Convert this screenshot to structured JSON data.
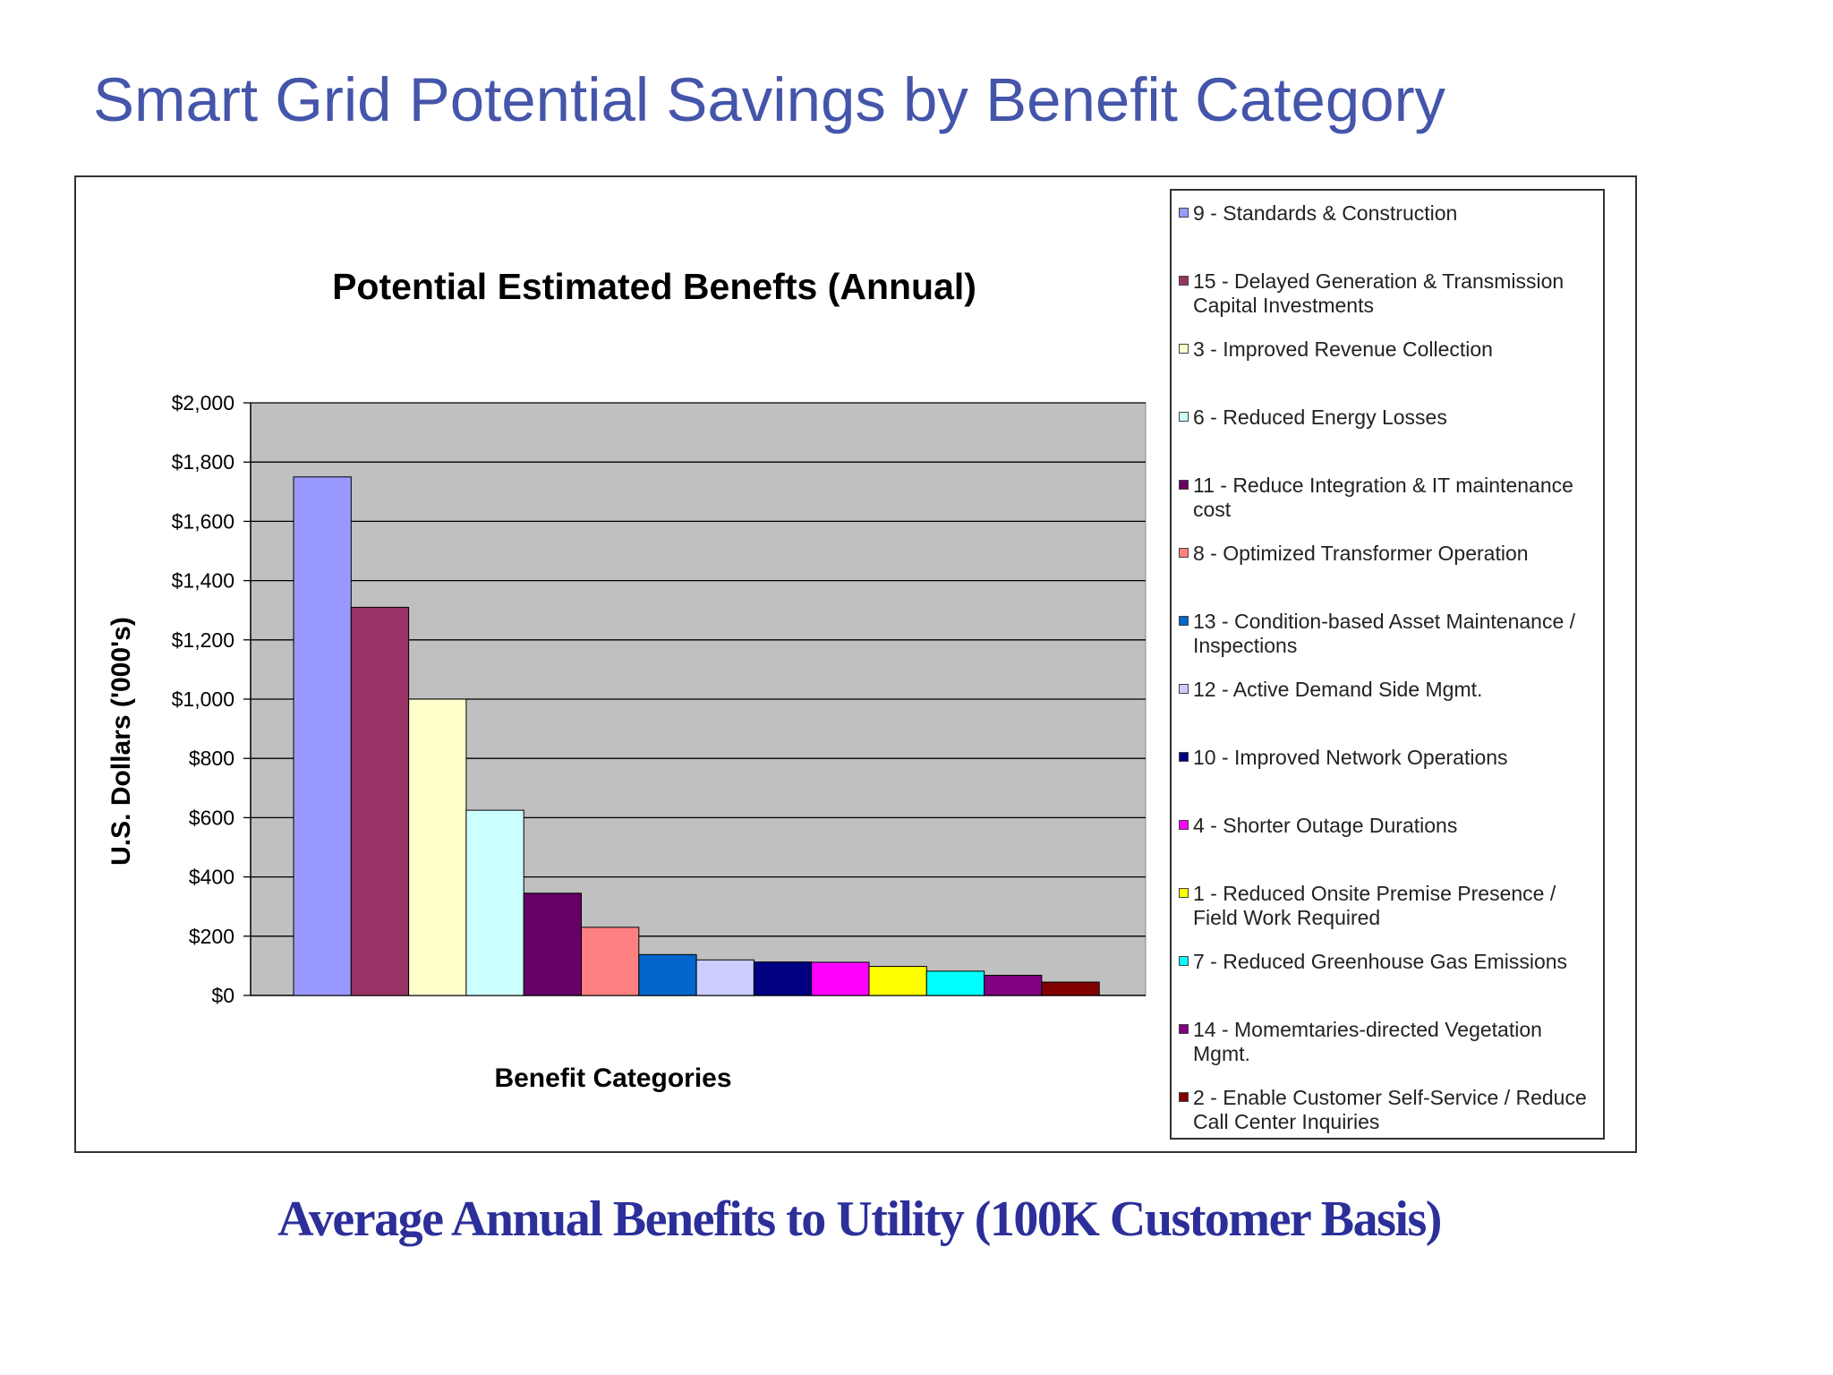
{
  "slide": {
    "title": "Smart Grid Potential Savings by Benefit Category",
    "caption": "Average Annual Benefits to Utility (100K Customer Basis)"
  },
  "chart_data": {
    "type": "bar",
    "title": "Potential Estimated Benefts (Annual)",
    "xlabel": "Benefit Categories",
    "ylabel": "U.S. Dollars ('000's)",
    "ylim": [
      0,
      2000
    ],
    "yticks": [
      0,
      200,
      400,
      600,
      800,
      1000,
      1200,
      1400,
      1600,
      1800,
      2000
    ],
    "ytick_labels": [
      "$0",
      "$200",
      "$400",
      "$600",
      "$800",
      "$1,000",
      "$1,200",
      "$1,400",
      "$1,600",
      "$1,800",
      "$2,000"
    ],
    "grid": true,
    "legend_position": "right",
    "plot_background": "#c0c0c0",
    "series": [
      {
        "name": "9 - Standards & Construction",
        "value": 1750,
        "color": "#9999ff"
      },
      {
        "name": "15 - Delayed Generation & Transmission Capital Investments",
        "value": 1310,
        "color": "#993366"
      },
      {
        "name": "3 - Improved Revenue Collection",
        "value": 1000,
        "color": "#ffffcc"
      },
      {
        "name": "6 - Reduced Energy Losses",
        "value": 625,
        "color": "#ccffff"
      },
      {
        "name": "11 - Reduce Integration & IT maintenance cost",
        "value": 345,
        "color": "#660066"
      },
      {
        "name": "8 - Optimized Transformer Operation",
        "value": 230,
        "color": "#ff8080"
      },
      {
        "name": "13 - Condition-based Asset Maintenance / Inspections",
        "value": 138,
        "color": "#0066cc"
      },
      {
        "name": "12 - Active Demand Side Mgmt.",
        "value": 120,
        "color": "#ccccff"
      },
      {
        "name": "10 - Improved Network Operations",
        "value": 113,
        "color": "#000080"
      },
      {
        "name": "4 - Shorter Outage Durations",
        "value": 112,
        "color": "#ff00ff"
      },
      {
        "name": "1 - Reduced Onsite Premise Presence / Field Work Required",
        "value": 98,
        "color": "#ffff00"
      },
      {
        "name": "7 - Reduced Greenhouse Gas Emissions",
        "value": 82,
        "color": "#00ffff"
      },
      {
        "name": "14 - Momemtaries-directed Vegetation Mgmt.",
        "value": 68,
        "color": "#800080"
      },
      {
        "name": "2 - Enable Customer Self-Service / Reduce Call Center Inquiries",
        "value": 45,
        "color": "#800000"
      }
    ],
    "legend_order": [
      0,
      1,
      2,
      3,
      4,
      5,
      6,
      7,
      8,
      9,
      10,
      11,
      12,
      13
    ]
  }
}
